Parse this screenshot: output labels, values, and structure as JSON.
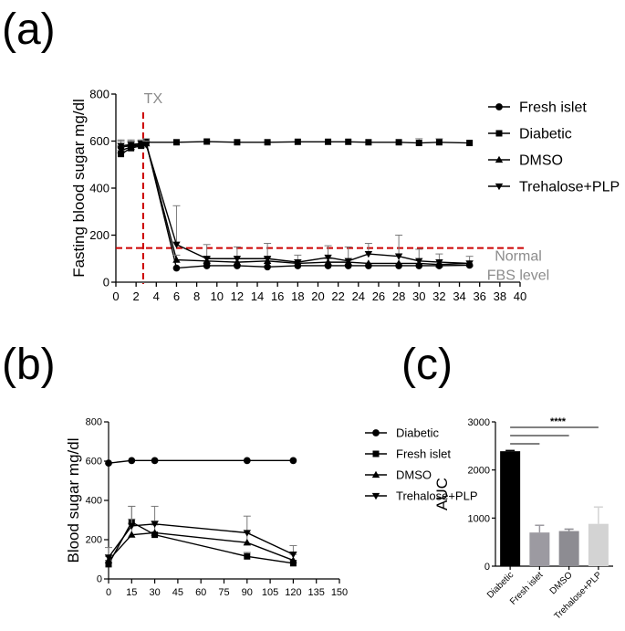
{
  "panel_labels": {
    "a": "(a)",
    "b": "(b)",
    "c": "(c)"
  },
  "colors": {
    "ink": "#000000",
    "axis": "#000000",
    "reference_line": "#cc0000",
    "annotation_gray": "#8c8c8c",
    "error_bar": "#7a7a7a"
  },
  "chart_data": [
    {
      "id": "a",
      "type": "line",
      "title": "",
      "xlabel": "",
      "ylabel": "Fasting blood sugar mg/dl",
      "xlim": [
        0,
        40
      ],
      "ylim": [
        0,
        800
      ],
      "x_ticks": [
        0,
        2,
        4,
        6,
        8,
        10,
        12,
        14,
        16,
        18,
        20,
        22,
        24,
        26,
        28,
        30,
        32,
        34,
        36,
        38,
        40
      ],
      "y_ticks": [
        0,
        200,
        400,
        600,
        800
      ],
      "legend_position": "top-right",
      "vertical_marker": {
        "x": 2.7,
        "label": "TX"
      },
      "reference_line": {
        "y": 145,
        "label_lines": [
          "Normal",
          "FBS level"
        ]
      },
      "series": [
        {
          "name": "Fresh islet",
          "marker": "circle",
          "x": [
            0.5,
            1.5,
            2.5,
            3,
            6,
            9,
            12,
            15,
            18,
            21,
            23,
            25,
            28,
            30,
            32,
            35
          ],
          "y": [
            575,
            580,
            585,
            595,
            60,
            70,
            70,
            65,
            70,
            70,
            70,
            70,
            70,
            70,
            70,
            72
          ],
          "err": [
            25,
            20,
            15,
            15,
            10,
            15,
            15,
            10,
            10,
            10,
            10,
            10,
            10,
            10,
            10,
            10
          ]
        },
        {
          "name": "Diabetic",
          "marker": "square",
          "x": [
            0.5,
            1.5,
            2.5,
            3,
            6,
            9,
            12,
            15,
            18,
            21,
            23,
            25,
            28,
            30,
            32,
            35
          ],
          "y": [
            545,
            570,
            580,
            595,
            595,
            598,
            595,
            595,
            597,
            597,
            597,
            595,
            595,
            592,
            595,
            592
          ],
          "err": [
            15,
            12,
            10,
            10,
            8,
            8,
            8,
            8,
            8,
            8,
            8,
            8,
            8,
            18,
            15,
            12
          ]
        },
        {
          "name": "DMSO",
          "marker": "triangle-up",
          "x": [
            0.5,
            1.5,
            2.5,
            3,
            6,
            9,
            12,
            15,
            18,
            21,
            23,
            25,
            28,
            30,
            32,
            35
          ],
          "y": [
            560,
            575,
            585,
            590,
            95,
            90,
            85,
            90,
            80,
            85,
            85,
            80,
            80,
            80,
            75,
            80
          ],
          "err": [
            20,
            15,
            12,
            12,
            20,
            15,
            15,
            15,
            15,
            15,
            10,
            10,
            10,
            10,
            10,
            10
          ]
        },
        {
          "name": "Trehalose+PLP",
          "marker": "triangle-down",
          "x": [
            0.5,
            1.5,
            2.5,
            3,
            6,
            9,
            12,
            15,
            18,
            21,
            23,
            25,
            28,
            30,
            32,
            35
          ],
          "y": [
            580,
            585,
            590,
            585,
            160,
            100,
            100,
            100,
            85,
            105,
            90,
            120,
            110,
            90,
            85,
            80
          ],
          "err": [
            25,
            20,
            15,
            15,
            165,
            60,
            50,
            65,
            30,
            50,
            60,
            45,
            90,
            50,
            35,
            30
          ]
        }
      ]
    },
    {
      "id": "b",
      "type": "line",
      "title": "",
      "xlabel": "",
      "ylabel": "Blood sugar mg/dl",
      "xlim": [
        0,
        150
      ],
      "ylim": [
        0,
        800
      ],
      "x_ticks": [
        0,
        15,
        30,
        45,
        60,
        75,
        90,
        105,
        120,
        135,
        150
      ],
      "y_ticks": [
        0,
        200,
        400,
        600,
        800
      ],
      "legend_position": "top-right",
      "series": [
        {
          "name": "Diabetic",
          "marker": "circle",
          "x": [
            0,
            15,
            30,
            90,
            120
          ],
          "y": [
            590,
            603,
            603,
            603,
            603
          ],
          "err": [
            5,
            5,
            5,
            5,
            5
          ]
        },
        {
          "name": "Fresh islet",
          "marker": "square",
          "x": [
            0,
            15,
            30,
            90,
            120
          ],
          "y": [
            75,
            290,
            225,
            115,
            80
          ],
          "err": [
            20,
            80,
            50,
            20,
            15
          ]
        },
        {
          "name": "DMSO",
          "marker": "triangle-up",
          "x": [
            0,
            15,
            30,
            90,
            120
          ],
          "y": [
            95,
            225,
            235,
            185,
            95
          ],
          "err": [
            20,
            80,
            60,
            50,
            30
          ]
        },
        {
          "name": "Trehalose+PLP",
          "marker": "triangle-down",
          "x": [
            0,
            15,
            30,
            90,
            120
          ],
          "y": [
            110,
            270,
            280,
            235,
            125
          ],
          "err": [
            50,
            100,
            90,
            85,
            45
          ]
        }
      ]
    },
    {
      "id": "c",
      "type": "bar",
      "title": "",
      "xlabel": "",
      "ylabel": "AUC",
      "ylim": [
        0,
        3000
      ],
      "y_ticks": [
        0,
        1000,
        2000,
        3000
      ],
      "categories": [
        "Diabetic",
        "Fresh islet",
        "DMSO",
        "Trehalose+PLP"
      ],
      "values": [
        2390,
        700,
        730,
        880
      ],
      "errors": [
        15,
        150,
        40,
        350
      ],
      "bar_colors": [
        "#000000",
        "#9c9aa1",
        "#8d8c92",
        "#d3d3d3"
      ],
      "significance": {
        "label": "****",
        "comparisons": [
          [
            "Diabetic",
            "Fresh islet"
          ],
          [
            "Diabetic",
            "DMSO"
          ],
          [
            "Diabetic",
            "Trehalose+PLP"
          ]
        ]
      }
    }
  ]
}
